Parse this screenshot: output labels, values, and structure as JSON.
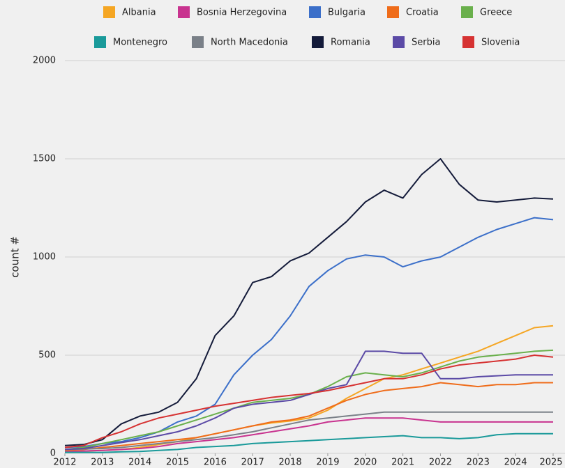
{
  "chart_data": {
    "type": "line",
    "ylabel": "count #",
    "x": [
      2012,
      2012.5,
      2013,
      2013.5,
      2014,
      2014.5,
      2015,
      2015.5,
      2016,
      2016.5,
      2017,
      2017.5,
      2018,
      2018.5,
      2019,
      2019.5,
      2020,
      2020.5,
      2021,
      2021.5,
      2022,
      2022.5,
      2023,
      2023.5,
      2024,
      2024.5,
      2025
    ],
    "xlim": [
      2012,
      2025
    ],
    "xticks": [
      2012,
      2013,
      2014,
      2015,
      2016,
      2017,
      2018,
      2019,
      2020,
      2021,
      2022,
      2023,
      2024,
      2025
    ],
    "ylim": [
      0,
      2000
    ],
    "yticks": [
      0,
      500,
      1000,
      1500,
      2000
    ],
    "grid": true,
    "legend": "top",
    "series": [
      {
        "name": "Albania",
        "color": "#f5a623",
        "values": [
          10,
          12,
          15,
          20,
          30,
          45,
          60,
          80,
          100,
          120,
          140,
          155,
          165,
          180,
          220,
          280,
          330,
          380,
          400,
          430,
          460,
          490,
          520,
          560,
          600,
          640,
          650
        ]
      },
      {
        "name": "Bosnia Herzegovina",
        "color": "#c8338f",
        "values": [
          10,
          12,
          15,
          20,
          25,
          35,
          50,
          60,
          70,
          80,
          95,
          110,
          125,
          140,
          160,
          170,
          180,
          180,
          180,
          170,
          160,
          160,
          160,
          160,
          160,
          160,
          160
        ]
      },
      {
        "name": "Bulgaria",
        "color": "#3b6fc9",
        "values": [
          30,
          35,
          50,
          60,
          80,
          110,
          160,
          190,
          250,
          400,
          500,
          580,
          700,
          850,
          930,
          990,
          1010,
          1000,
          950,
          980,
          1000,
          1050,
          1100,
          1140,
          1170,
          1200,
          1190
        ]
      },
      {
        "name": "Croatia",
        "color": "#ef6c1a",
        "values": [
          15,
          20,
          30,
          40,
          50,
          60,
          70,
          80,
          100,
          120,
          140,
          160,
          170,
          190,
          230,
          270,
          300,
          320,
          330,
          340,
          360,
          350,
          340,
          350,
          350,
          360,
          360
        ]
      },
      {
        "name": "Greece",
        "color": "#6ab04c",
        "values": [
          20,
          30,
          50,
          70,
          90,
          110,
          140,
          170,
          200,
          230,
          260,
          270,
          280,
          300,
          340,
          390,
          410,
          400,
          390,
          410,
          440,
          470,
          490,
          500,
          510,
          520,
          525
        ]
      },
      {
        "name": "Montenegro",
        "color": "#1a9a9a",
        "values": [
          5,
          5,
          5,
          8,
          10,
          15,
          20,
          30,
          35,
          40,
          50,
          55,
          60,
          65,
          70,
          75,
          80,
          85,
          90,
          80,
          80,
          75,
          80,
          95,
          100,
          100,
          100
        ]
      },
      {
        "name": "North Macedonia",
        "color": "#7a8088",
        "values": [
          20,
          22,
          25,
          30,
          40,
          50,
          60,
          70,
          80,
          95,
          110,
          130,
          150,
          170,
          180,
          190,
          200,
          210,
          210,
          210,
          210,
          210,
          210,
          210,
          210,
          210,
          210
        ]
      },
      {
        "name": "Romania",
        "color": "#141b3a",
        "values": [
          40,
          45,
          70,
          150,
          190,
          210,
          260,
          380,
          600,
          700,
          870,
          900,
          980,
          1020,
          1100,
          1180,
          1280,
          1340,
          1300,
          1420,
          1500,
          1370,
          1290,
          1280,
          1290,
          1300,
          1295
        ]
      },
      {
        "name": "Serbia",
        "color": "#5b4aa6",
        "values": [
          20,
          25,
          40,
          55,
          70,
          90,
          110,
          140,
          180,
          230,
          250,
          260,
          270,
          300,
          330,
          350,
          520,
          520,
          510,
          510,
          380,
          380,
          390,
          395,
          400,
          400,
          400
        ]
      },
      {
        "name": "Slovenia",
        "color": "#d63232",
        "values": [
          30,
          40,
          80,
          110,
          150,
          180,
          200,
          220,
          240,
          255,
          270,
          285,
          295,
          305,
          320,
          340,
          360,
          380,
          380,
          400,
          430,
          450,
          460,
          470,
          480,
          500,
          490
        ]
      }
    ]
  }
}
